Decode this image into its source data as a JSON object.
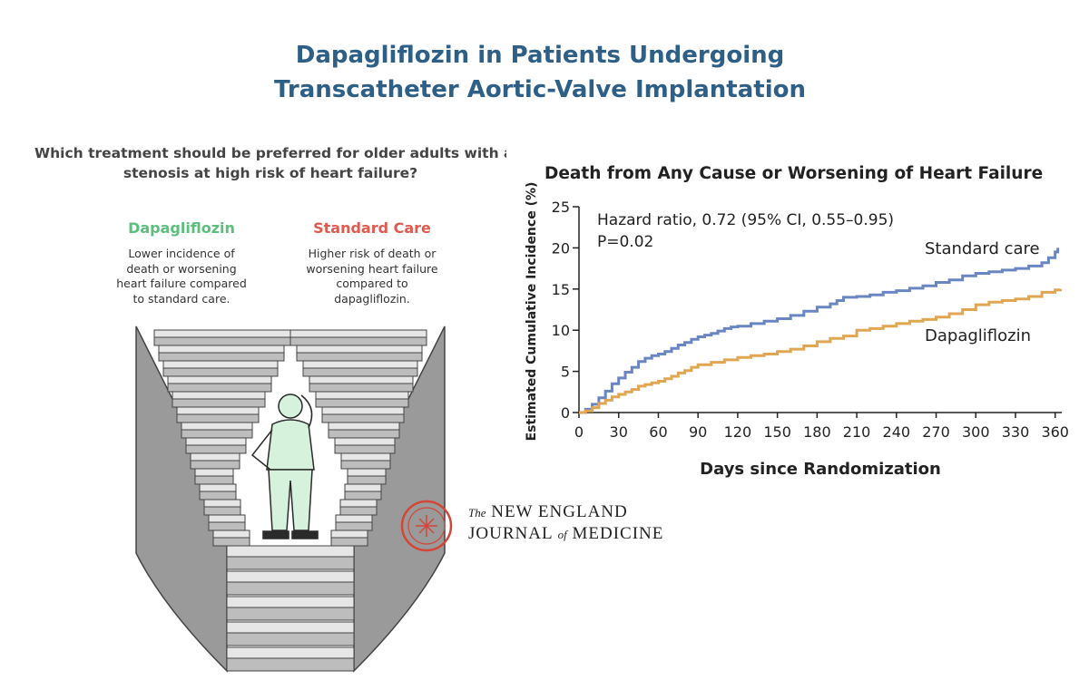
{
  "title": {
    "line1": "Dapagliflozin in Patients Undergoing",
    "line2": "Transcatheter Aortic-Valve Implantation"
  },
  "infographic": {
    "question_line1": "Which treatment should be preferred for older adults with aortic",
    "question_line2": "stenosis at high risk of heart failure?",
    "left": {
      "heading": "Dapagliflozin",
      "color": "#5bbf7c",
      "desc": [
        "Lower incidence of",
        "death or worsening",
        "heart failure compared",
        "to standard care."
      ]
    },
    "right": {
      "heading": "Standard Care",
      "color": "#e05a4f",
      "desc": [
        "Higher risk of death or",
        "worsening heart failure",
        "compared to",
        "dapagliflozin."
      ]
    }
  },
  "chart_data": {
    "type": "line",
    "title": "Death from Any Cause or Worsening of Heart Failure",
    "xlabel": "Days since Randomization",
    "ylabel": "Estimated Cumulative Incidence (%)",
    "xlim": [
      0,
      365
    ],
    "ylim": [
      0,
      25
    ],
    "xticks": [
      0,
      30,
      60,
      90,
      120,
      150,
      180,
      210,
      240,
      270,
      300,
      330,
      360
    ],
    "yticks": [
      0,
      5,
      10,
      15,
      20,
      25
    ],
    "annotations": {
      "hazard": "Hazard ratio, 0.72 (95% CI, 0.55–0.95)",
      "p": "P=0.02"
    },
    "series": [
      {
        "name": "Standard care",
        "color": "#6a86c2",
        "x": [
          0,
          5,
          10,
          15,
          20,
          25,
          30,
          35,
          40,
          45,
          50,
          55,
          60,
          65,
          70,
          75,
          80,
          85,
          90,
          95,
          100,
          105,
          110,
          115,
          120,
          130,
          140,
          150,
          160,
          170,
          180,
          190,
          195,
          200,
          210,
          220,
          230,
          240,
          250,
          260,
          270,
          280,
          290,
          300,
          310,
          320,
          330,
          340,
          350,
          355,
          360,
          362
        ],
        "y": [
          0,
          0.4,
          1.0,
          1.8,
          2.6,
          3.5,
          4.2,
          4.9,
          5.5,
          6.2,
          6.6,
          6.9,
          7.1,
          7.4,
          7.8,
          8.2,
          8.5,
          8.9,
          9.2,
          9.4,
          9.6,
          9.9,
          10.2,
          10.4,
          10.5,
          10.8,
          11.1,
          11.4,
          11.8,
          12.3,
          12.8,
          13.2,
          13.6,
          14.0,
          14.1,
          14.3,
          14.6,
          14.8,
          15.1,
          15.4,
          15.8,
          16.1,
          16.6,
          16.9,
          17.1,
          17.3,
          17.5,
          17.8,
          18.2,
          18.8,
          19.5,
          20.0
        ]
      },
      {
        "name": "Dapagliflozin",
        "color": "#e0a652",
        "x": [
          0,
          5,
          10,
          15,
          20,
          25,
          30,
          35,
          40,
          45,
          50,
          55,
          60,
          65,
          70,
          75,
          80,
          85,
          90,
          100,
          110,
          120,
          130,
          140,
          150,
          160,
          170,
          180,
          190,
          200,
          210,
          220,
          230,
          240,
          250,
          260,
          270,
          280,
          290,
          300,
          310,
          320,
          330,
          340,
          350,
          360,
          364
        ],
        "y": [
          0,
          0.2,
          0.6,
          1.1,
          1.5,
          1.9,
          2.2,
          2.5,
          2.8,
          3.2,
          3.4,
          3.6,
          3.8,
          4.1,
          4.4,
          4.8,
          5.1,
          5.5,
          5.8,
          6.1,
          6.4,
          6.7,
          6.9,
          7.1,
          7.4,
          7.7,
          8.1,
          8.6,
          9.0,
          9.3,
          10.0,
          10.2,
          10.5,
          10.8,
          11.1,
          11.3,
          11.6,
          12.0,
          12.5,
          13.1,
          13.4,
          13.6,
          13.8,
          14.1,
          14.6,
          14.9,
          15.0
        ]
      }
    ]
  },
  "publisher": {
    "line1_small": "The",
    "line1_main": "NEW ENGLAND",
    "line2_a": "JOURNAL",
    "line2_small": "of",
    "line2_b": "MEDICINE",
    "seal_color": "#d4453a"
  }
}
